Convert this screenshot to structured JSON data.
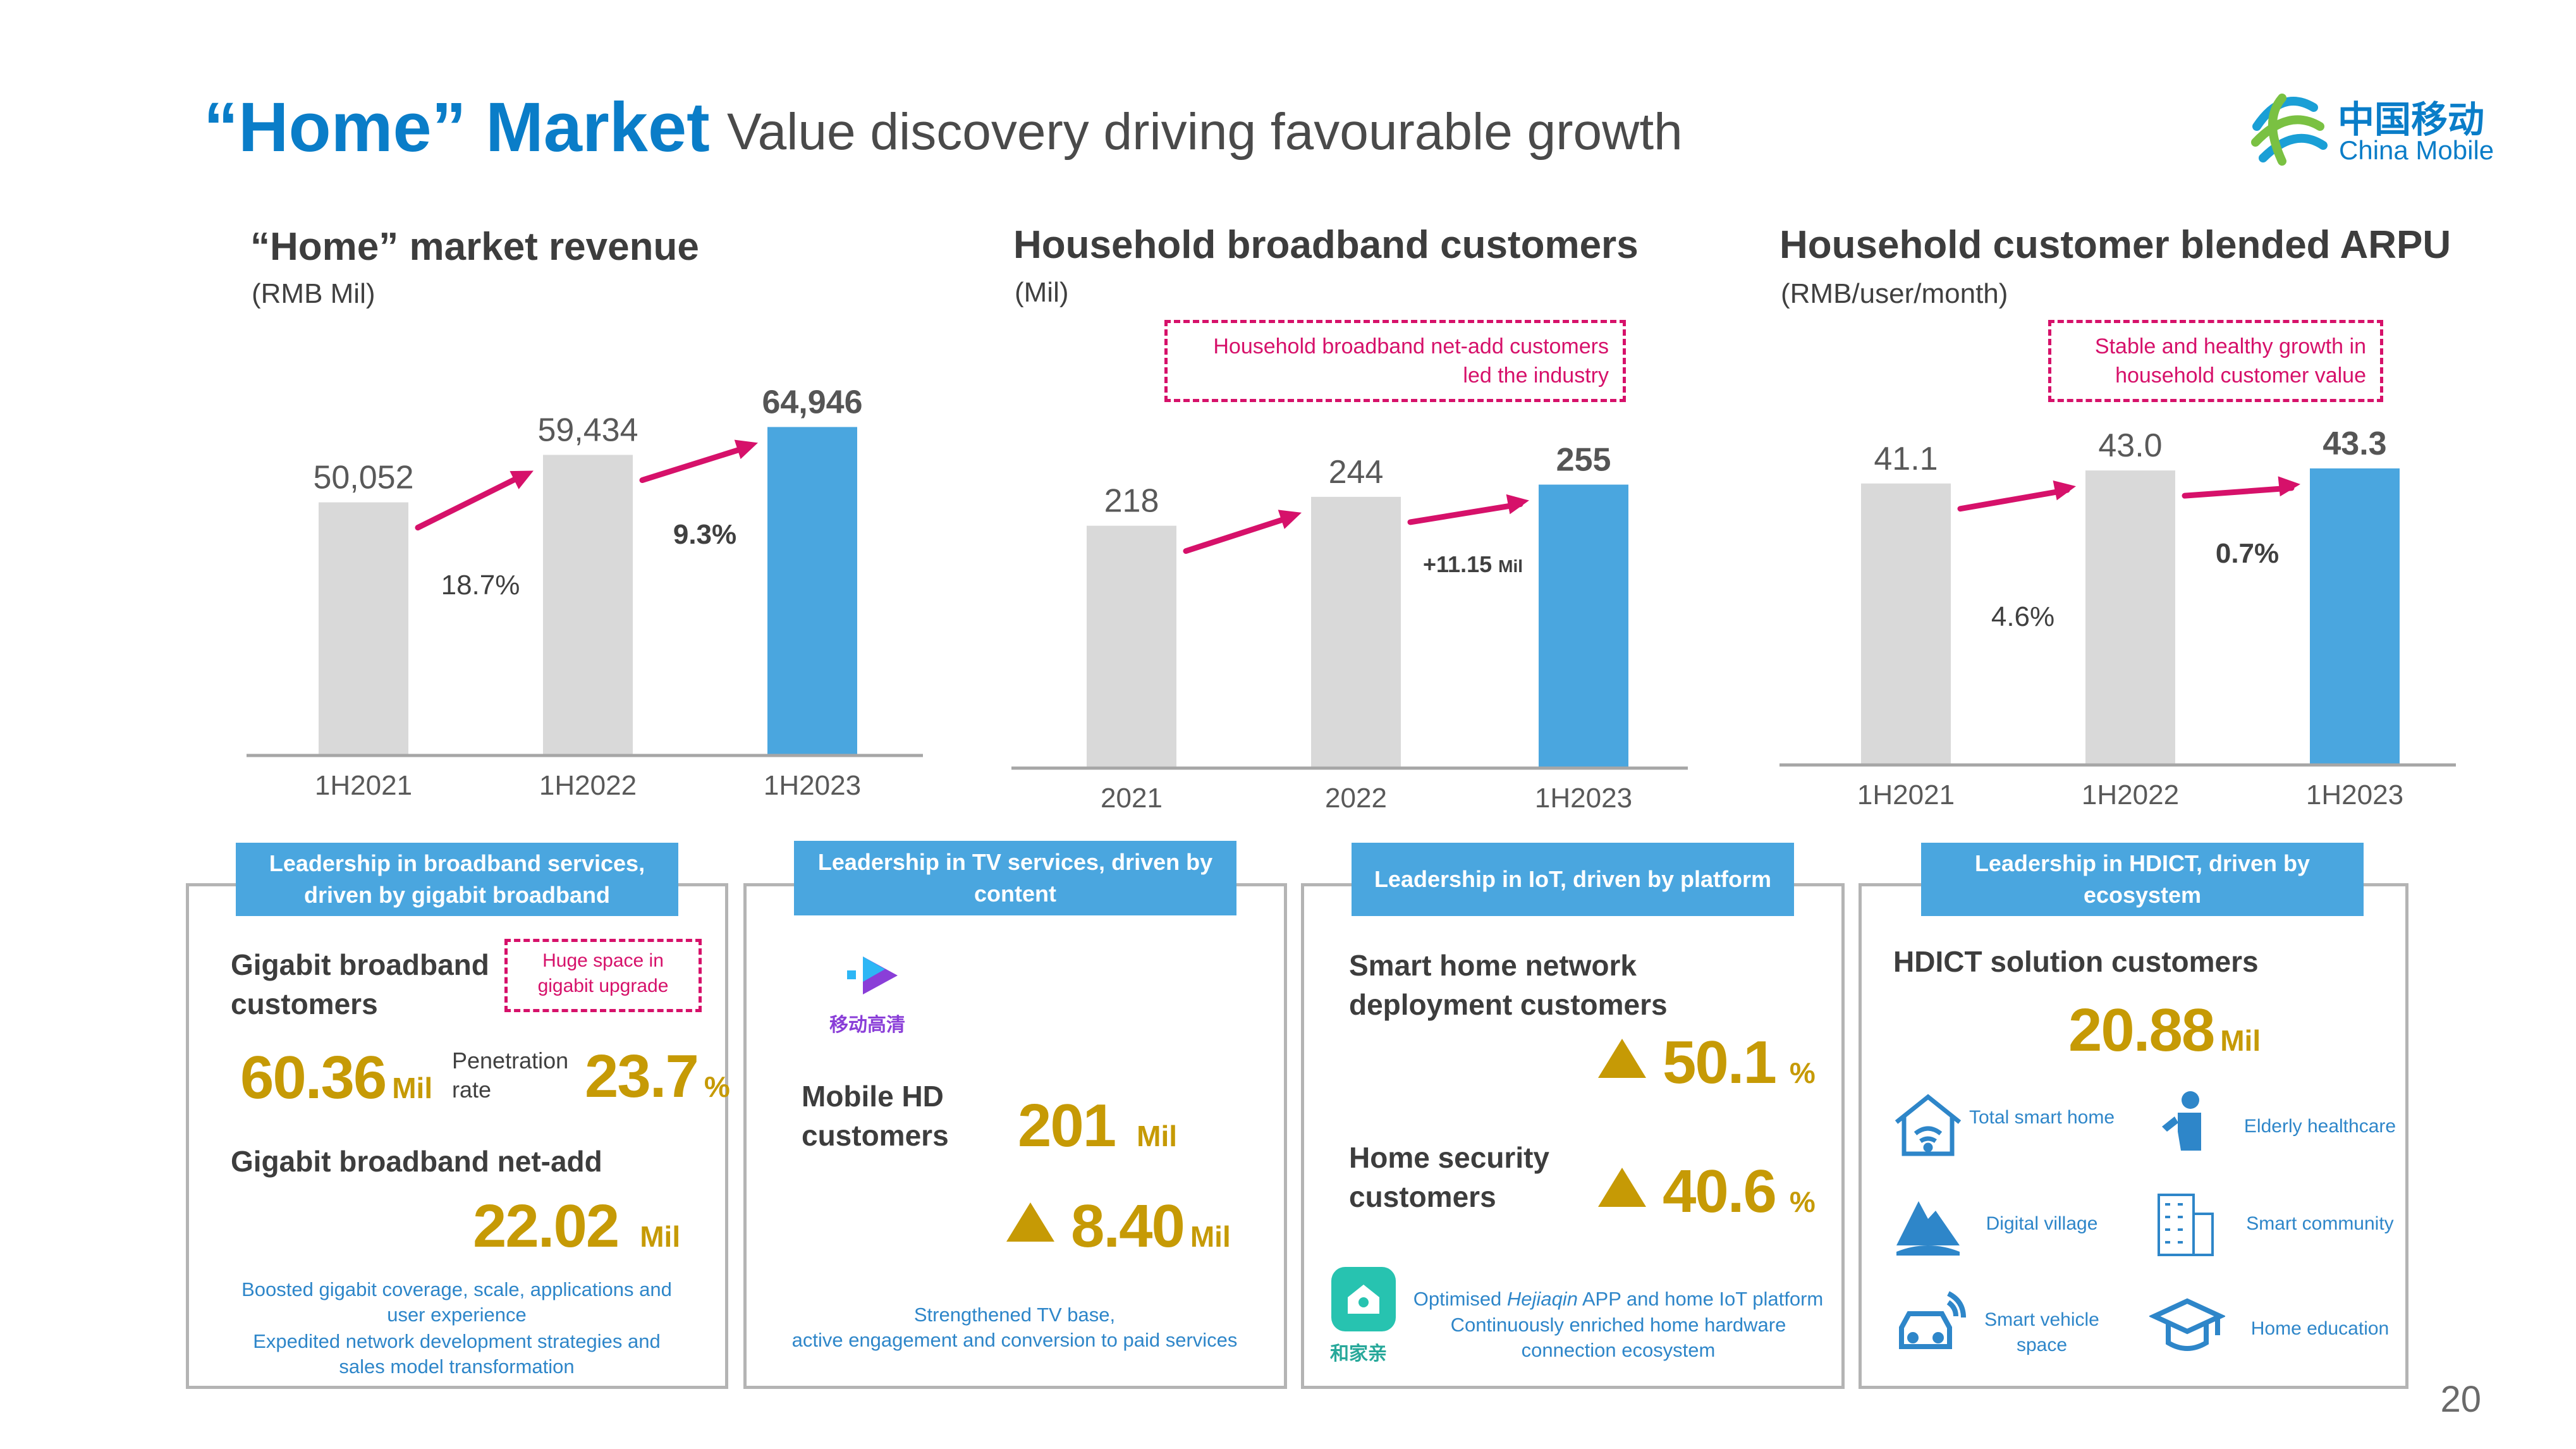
{
  "header": {
    "title": "“Home” Market",
    "subtitle": "Value discovery driving favourable growth",
    "brand_cn": "中国移动",
    "brand_en": "China Mobile",
    "page_number": "20"
  },
  "colors": {
    "accent": "#0a7dc8",
    "bar_gray": "#d9d9d9",
    "bar_blue": "#4aa6df",
    "arrow": "#d6116a",
    "gold": "#c69a05"
  },
  "chart_data": [
    {
      "type": "bar",
      "title": "“Home” market revenue",
      "unit": "(RMB Mil)",
      "categories": [
        "1H2021",
        "1H2022",
        "1H2023"
      ],
      "values": [
        50052,
        59434,
        64946
      ],
      "value_labels": [
        "50,052",
        "59,434",
        "64,946"
      ],
      "growth_labels": [
        "18.7%",
        "9.3%"
      ],
      "ylim": [
        0,
        70000
      ]
    },
    {
      "type": "bar",
      "title": "Household broadband customers",
      "unit": "(Mil)",
      "categories": [
        "2021",
        "2022",
        "1H2023"
      ],
      "values": [
        218,
        244,
        255
      ],
      "value_labels": [
        "218",
        "244",
        "255"
      ],
      "growth_labels": [
        "",
        "+11.15 Mil"
      ],
      "callout": "Household broadband net-add customers led the industry",
      "ylim": [
        0,
        290
      ]
    },
    {
      "type": "bar",
      "title": "Household customer blended ARPU",
      "unit": "(RMB/user/month)",
      "categories": [
        "1H2021",
        "1H2022",
        "1H2023"
      ],
      "values": [
        41.1,
        43.0,
        43.3
      ],
      "value_labels": [
        "41.1",
        "43.0",
        "43.3"
      ],
      "growth_labels": [
        "4.6%",
        "0.7%"
      ],
      "callout": "Stable and healthy growth in household customer value",
      "ylim": [
        0,
        48
      ]
    }
  ],
  "panels": {
    "broadband": {
      "head": "Leadership in broadband services, driven by gigabit broadband",
      "gigabit_label": "Gigabit broadband customers",
      "callout": "Huge space in gigabit upgrade",
      "gigabit_value": "60.36",
      "gigabit_unit": "Mil",
      "penetration_label": "Penetration rate",
      "penetration_value": "23.7",
      "penetration_unit": "%",
      "netadd_label": "Gigabit broadband net-add",
      "netadd_value": "22.02",
      "netadd_unit": "Mil",
      "note1": "Boosted gigabit coverage, scale, applications and user experience",
      "note2": "Expedited network development strategies and sales model transformation"
    },
    "tv": {
      "head": "Leadership in TV services, driven by content",
      "app_name": "移动高清",
      "label": "Mobile HD customers",
      "value": "201",
      "unit": "Mil",
      "growth_value": "8.40",
      "growth_unit": "Mil",
      "note1": "Strengthened TV base,",
      "note2": "active engagement and conversion to paid services"
    },
    "iot": {
      "head": "Leadership in IoT, driven by platform",
      "label1": "Smart home network deployment customers",
      "value1": "50.1",
      "unit1": "%",
      "label2": "Home security customers",
      "value2": "40.6",
      "unit2": "%",
      "app_name": "和家亲",
      "note1_prefix": "Optimised ",
      "note1_app": "Hejiaqin",
      "note1_suffix": " APP and home IoT platform",
      "note2": "Continuously enriched home hardware connection ecosystem"
    },
    "hdict": {
      "head": "Leadership in HDICT, driven by ecosystem",
      "label": "HDICT solution customers",
      "value": "20.88",
      "unit": "Mil",
      "items": [
        {
          "label": "Total smart home",
          "icon": "smart-home-icon"
        },
        {
          "label": "Elderly healthcare",
          "icon": "elderly-healthcare-icon"
        },
        {
          "label": "Digital village",
          "icon": "digital-village-icon"
        },
        {
          "label": "Smart community",
          "icon": "smart-community-icon"
        },
        {
          "label": "Smart vehicle space",
          "icon": "smart-vehicle-icon"
        },
        {
          "label": "Home education",
          "icon": "home-education-icon"
        }
      ]
    }
  }
}
